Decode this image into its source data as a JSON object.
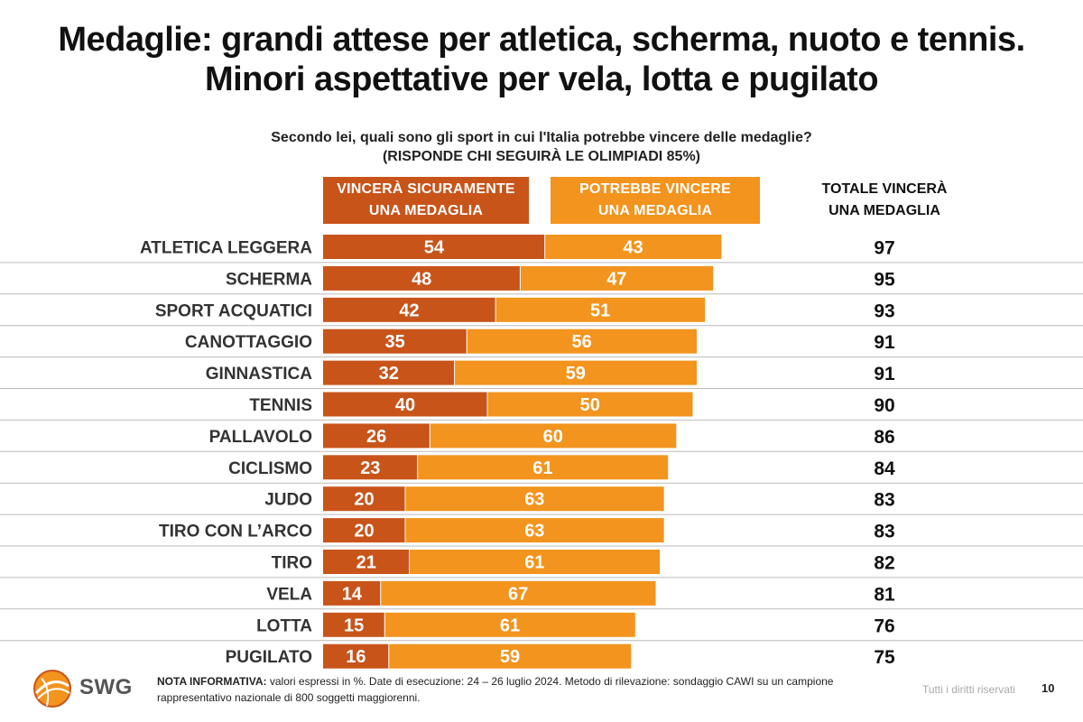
{
  "header": {
    "title_line1": "Medaglie: grandi attese per atletica, scherma, nuoto e tennis.",
    "title_line2": "Minori aspettative per vela, lotta e pugilato",
    "question_line1": "Secondo lei, quali sono gli sport in cui l'Italia potrebbe vincere delle medaglie?",
    "question_line2": "(RISPONDE CHI SEGUIRÀ LE OLIMPIADI 85%)"
  },
  "legend": {
    "sure_line1": "VINCERÀ SICURAMENTE",
    "sure_line2": "UNA MEDAGLIA",
    "maybe_line1": "POTREBBE VINCERE",
    "maybe_line2": "UNA MEDAGLIA",
    "total_line1": "TOTALE VINCERÀ",
    "total_line2": "UNA MEDAGLIA"
  },
  "colors": {
    "sure": "#C8541A",
    "maybe": "#F2941E"
  },
  "chart_data": {
    "type": "bar",
    "orientation": "horizontal",
    "stacked": true,
    "categories": [
      "ATLETICA LEGGERA",
      "SCHERMA",
      "SPORT ACQUATICI",
      "CANOTTAGGIO",
      "GINNASTICA",
      "TENNIS",
      "PALLAVOLO",
      "CICLISMO",
      "JUDO",
      "TIRO CON L’ARCO",
      "TIRO",
      "VELA",
      "LOTTA",
      "PUGILATO"
    ],
    "series": [
      {
        "name": "VINCERÀ SICURAMENTE UNA MEDAGLIA",
        "values": [
          54,
          48,
          42,
          35,
          32,
          40,
          26,
          23,
          20,
          20,
          21,
          14,
          15,
          16
        ]
      },
      {
        "name": "POTREBBE VINCERE UNA MEDAGLIA",
        "values": [
          43,
          47,
          51,
          56,
          59,
          50,
          60,
          61,
          63,
          63,
          61,
          67,
          61,
          59
        ]
      }
    ],
    "totals": [
      97,
      95,
      93,
      91,
      91,
      90,
      86,
      84,
      83,
      83,
      82,
      81,
      76,
      75
    ],
    "xlim": [
      0,
      100
    ],
    "grid": false
  },
  "footer": {
    "note_label": "NOTA INFORMATIVA:",
    "note_text": " valori espressi in %. Date di esecuzione: 24 – 26 luglio 2024. Metodo di rilevazione: sondaggio CAWI su un campione",
    "note_text2": "rappresentativo nazionale di 800 soggetti maggiorenni.",
    "logo_text": "SWG",
    "rights": "Tutti i diritti riservati",
    "page_number": "10"
  }
}
